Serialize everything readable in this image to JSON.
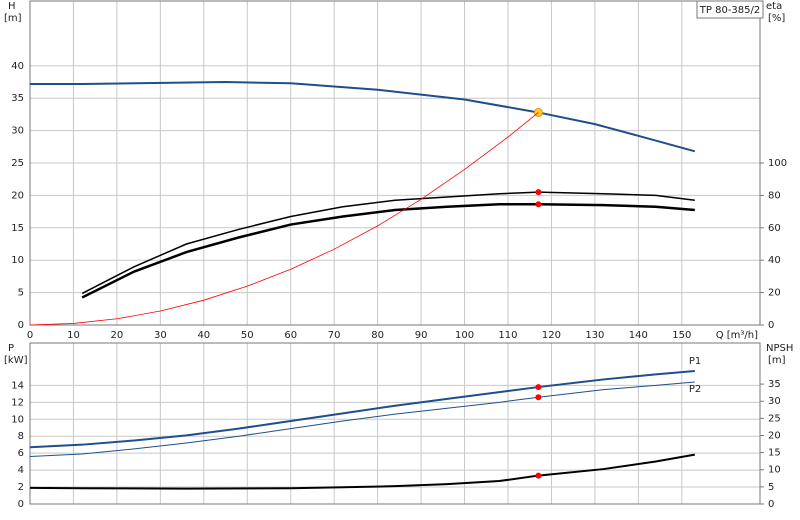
{
  "chart_data": [
    {
      "type": "line",
      "title": "TP 80-385/2",
      "ylabel": "H",
      "yunit": "[m]",
      "y2label": "eta",
      "y2unit": "[%]",
      "xlabel": "Q [m³/h]",
      "xlim": [
        0,
        168
      ],
      "xticks": [
        0,
        10,
        20,
        30,
        40,
        50,
        60,
        70,
        80,
        90,
        100,
        110,
        120,
        130,
        140,
        150
      ],
      "ylim": [
        0,
        50
      ],
      "yticks": [
        0,
        5,
        10,
        15,
        20,
        25,
        30,
        35,
        40
      ],
      "y2lim": [
        0,
        200
      ],
      "y2ticks": [
        0,
        20,
        40,
        60,
        80,
        100
      ],
      "grid": true,
      "series": [
        {
          "color": "#1f4e8c",
          "line_width": 2,
          "x": [
            0,
            12,
            45,
            60,
            80,
            100,
            117,
            130,
            140,
            153
          ],
          "values": [
            37.2,
            37.2,
            37.5,
            37.3,
            36.3,
            34.8,
            32.8,
            31,
            29.2,
            26.8
          ],
          "highlight": {
            "x": 117,
            "y": 32.8,
            "color": "#ffcc33"
          }
        },
        {
          "color": "#000000",
          "line_width": 1.5,
          "axis": "y2",
          "x": [
            12,
            24,
            36,
            48,
            60,
            72,
            84,
            96,
            108,
            117,
            132,
            144,
            153
          ],
          "values": [
            19.5,
            36,
            50,
            59,
            67,
            73,
            77,
            79,
            81,
            82,
            81,
            80,
            77
          ],
          "highlight": {
            "x": 117,
            "y": 82,
            "color": "#ff0000"
          }
        },
        {
          "color": "#000000",
          "line_width": 2.5,
          "axis": "y2",
          "x": [
            12,
            24,
            36,
            48,
            60,
            72,
            84,
            96,
            108,
            117,
            132,
            144,
            153
          ],
          "values": [
            17,
            33,
            45,
            54,
            62,
            67,
            71,
            73,
            74.5,
            74.5,
            74,
            73,
            71
          ],
          "highlight": {
            "x": 117,
            "y": 74.5,
            "color": "#ff0000"
          }
        },
        {
          "color": "#ff0000",
          "line_width": 0.8,
          "x": [
            0,
            10,
            20,
            30,
            40,
            50,
            60,
            70,
            80,
            90,
            100,
            110,
            117
          ],
          "values": [
            0,
            0.24,
            0.96,
            2.16,
            3.83,
            5.99,
            8.6,
            11.7,
            15.3,
            19.4,
            24,
            29,
            32.8
          ]
        }
      ]
    },
    {
      "type": "line",
      "ylabel": "P",
      "yunit": "[kW]",
      "y2label": "NPSH",
      "y2unit": "[m]",
      "xlim": [
        0,
        168
      ],
      "xticks": [
        0,
        10,
        20,
        30,
        40,
        50,
        60,
        70,
        80,
        90,
        100,
        110,
        120,
        130,
        140,
        150
      ],
      "ylim": [
        0,
        19
      ],
      "yticks": [
        0,
        2,
        4,
        6,
        8,
        10,
        12,
        14
      ],
      "y2lim": [
        0,
        47
      ],
      "y2ticks": [
        0,
        5,
        10,
        15,
        20,
        25,
        30,
        35
      ],
      "grid": true,
      "series": [
        {
          "name": "P1",
          "color": "#1f4e8c",
          "line_width": 2,
          "x": [
            0,
            12,
            24,
            36,
            48,
            60,
            72,
            84,
            96,
            108,
            117,
            132,
            144,
            153
          ],
          "values": [
            6.7,
            7.0,
            7.5,
            8.1,
            8.9,
            9.8,
            10.7,
            11.6,
            12.4,
            13.2,
            13.8,
            14.7,
            15.3,
            15.7
          ],
          "highlight": {
            "x": 117,
            "y": 13.8,
            "color": "#ff0000"
          }
        },
        {
          "name": "P2",
          "color": "#1f4e8c",
          "line_width": 1,
          "x": [
            0,
            12,
            24,
            36,
            48,
            60,
            72,
            84,
            96,
            108,
            117,
            132,
            144,
            153
          ],
          "values": [
            5.6,
            5.9,
            6.5,
            7.2,
            8.0,
            8.9,
            9.8,
            10.6,
            11.3,
            12.0,
            12.6,
            13.5,
            14.0,
            14.4
          ],
          "highlight": {
            "x": 117,
            "y": 12.6,
            "color": "#ff0000"
          }
        },
        {
          "color": "#000000",
          "line_width": 2,
          "axis": "y2",
          "x": [
            0,
            12,
            36,
            60,
            84,
            96,
            108,
            117,
            132,
            144,
            153
          ],
          "values": [
            4.7,
            4.6,
            4.5,
            4.6,
            5.2,
            5.8,
            6.7,
            8.3,
            10.2,
            12.4,
            14.4
          ],
          "highlight": {
            "x": 117,
            "y": 8.3,
            "color": "#ff0000"
          }
        }
      ]
    }
  ]
}
